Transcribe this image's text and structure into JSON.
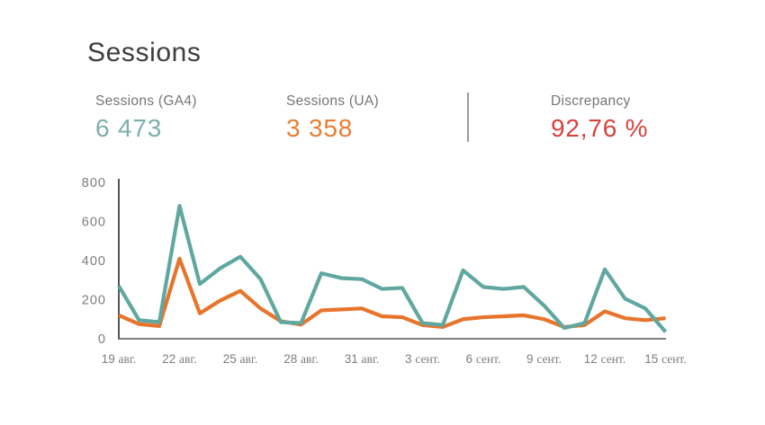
{
  "page": {
    "title": "Sessions"
  },
  "stats": {
    "ga4": {
      "label": "Sessions (GA4)",
      "value": "6 473"
    },
    "ua": {
      "label": "Sessions (UA)",
      "value": "3 358"
    },
    "disc": {
      "label": "Discrepancy",
      "value": "92,76 %"
    }
  },
  "colors": {
    "ga4_text": "#7bb1ab",
    "ua_text": "#e87e33",
    "disc_text": "#d5433f",
    "ga4_line": "#60a7a0",
    "ua_line": "#e8742b",
    "axis": "#565656",
    "tick_text": "#7d7d7d"
  },
  "chart_data": {
    "type": "line",
    "title": "Sessions",
    "xlabel": "",
    "ylabel": "",
    "ylim": [
      0,
      800
    ],
    "yticks": [
      0,
      200,
      400,
      600,
      800
    ],
    "grid": false,
    "legend": false,
    "num_points": 28,
    "x_tick_labels": [
      "19 авг.",
      "22 авг.",
      "25 авг.",
      "28 авг.",
      "31 авг.",
      "3 сент.",
      "6 сент.",
      "9 сент.",
      "12 сент.",
      "15 сент."
    ],
    "x_tick_indices": [
      0,
      3,
      6,
      9,
      12,
      15,
      18,
      21,
      24,
      27
    ],
    "series": [
      {
        "name": "Sessions (UA)",
        "color": "#e8742b",
        "values": [
          120,
          75,
          65,
          410,
          130,
          195,
          245,
          155,
          90,
          72,
          145,
          150,
          155,
          115,
          110,
          70,
          60,
          100,
          110,
          115,
          120,
          100,
          60,
          70,
          140,
          105,
          95,
          105
        ]
      },
      {
        "name": "Sessions (GA4)",
        "color": "#60a7a0",
        "values": [
          270,
          95,
          85,
          680,
          280,
          360,
          420,
          305,
          85,
          80,
          335,
          310,
          305,
          255,
          260,
          80,
          70,
          350,
          265,
          255,
          265,
          170,
          55,
          80,
          355,
          205,
          155,
          35
        ]
      }
    ]
  }
}
